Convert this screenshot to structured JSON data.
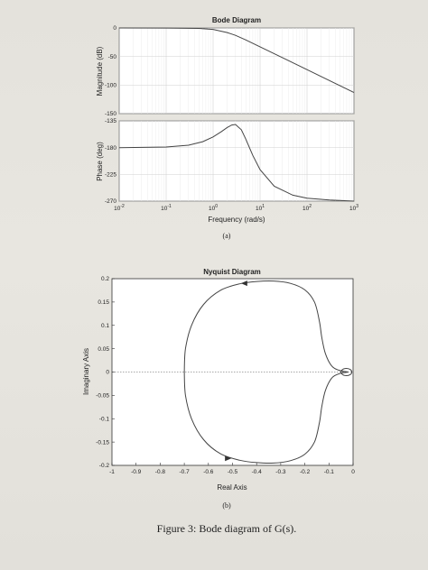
{
  "chart_data": [
    {
      "type": "line",
      "title": "Bode Diagram",
      "panels": [
        {
          "name": "magnitude",
          "ylabel": "Magnitude (dB)",
          "ylim": [
            -150,
            0
          ],
          "yticks": [
            0,
            -50,
            -100,
            -150
          ],
          "yticklabels": [
            "0",
            "-50",
            "-100",
            "-150"
          ],
          "xscale": "log",
          "xlim": [
            0.01,
            1000
          ],
          "x": [
            0.01,
            0.1,
            0.5,
            1,
            2,
            3,
            5,
            10,
            30,
            100,
            300,
            1000
          ],
          "y": [
            0,
            -0.1,
            -0.8,
            -2.6,
            -8,
            -13,
            -21,
            -33,
            -52,
            -73,
            -92,
            -113
          ]
        },
        {
          "name": "phase",
          "ylabel": "Phase (deg)",
          "ylim": [
            -270,
            -135
          ],
          "yticks": [
            -135,
            -180,
            -225,
            -270
          ],
          "yticklabels": [
            "-135",
            "-180",
            "-225",
            "-270"
          ],
          "xscale": "log",
          "xlim": [
            0.01,
            1000
          ],
          "x": [
            0.01,
            0.1,
            0.3,
            0.6,
            1,
            1.5,
            2,
            2.5,
            3,
            4,
            5,
            7,
            10,
            20,
            50,
            100,
            300,
            1000
          ],
          "y": [
            -180,
            -179,
            -176,
            -170,
            -162,
            -153,
            -146,
            -142,
            -141,
            -150,
            -166,
            -193,
            -217,
            -245,
            -260,
            -265,
            -268,
            -270
          ]
        }
      ],
      "xlabel": "Frequency  (rad/s)",
      "xticklabels": [
        "10-2",
        "10-1",
        "100",
        "101",
        "102",
        "103"
      ],
      "grid": true,
      "sublabel": "(a)"
    },
    {
      "type": "line",
      "title": "Nyquist Diagram",
      "xlabel": "Real Axis",
      "ylabel": "Imaginary Axis",
      "xlim": [
        -1,
        0
      ],
      "ylim": [
        -0.2,
        0.2
      ],
      "xticklabels": [
        "-1",
        "-0.9",
        "-0.8",
        "-0.7",
        "-0.6",
        "-0.5",
        "-0.4",
        "-0.3",
        "-0.2",
        "-0.1",
        "0"
      ],
      "yticklabels": [
        "0.2",
        "0.15",
        "0.1",
        "0.05",
        "0",
        "-0.05",
        "-0.1",
        "-0.15",
        "-0.2"
      ],
      "grid": false,
      "x": [
        -0.02,
        -0.06,
        -0.09,
        -0.115,
        -0.13,
        -0.14,
        -0.16,
        -0.2,
        -0.26,
        -0.33,
        -0.4,
        -0.47,
        -0.55,
        -0.62,
        -0.67,
        -0.695,
        -0.7
      ],
      "y": [
        0.0,
        0.004,
        0.014,
        0.04,
        0.075,
        0.11,
        0.15,
        0.176,
        0.19,
        0.195,
        0.194,
        0.189,
        0.175,
        0.145,
        0.1,
        0.05,
        0.0
      ],
      "sublabel": "(b)"
    }
  ],
  "caption": "Figure 3: Bode diagram of G(s)."
}
